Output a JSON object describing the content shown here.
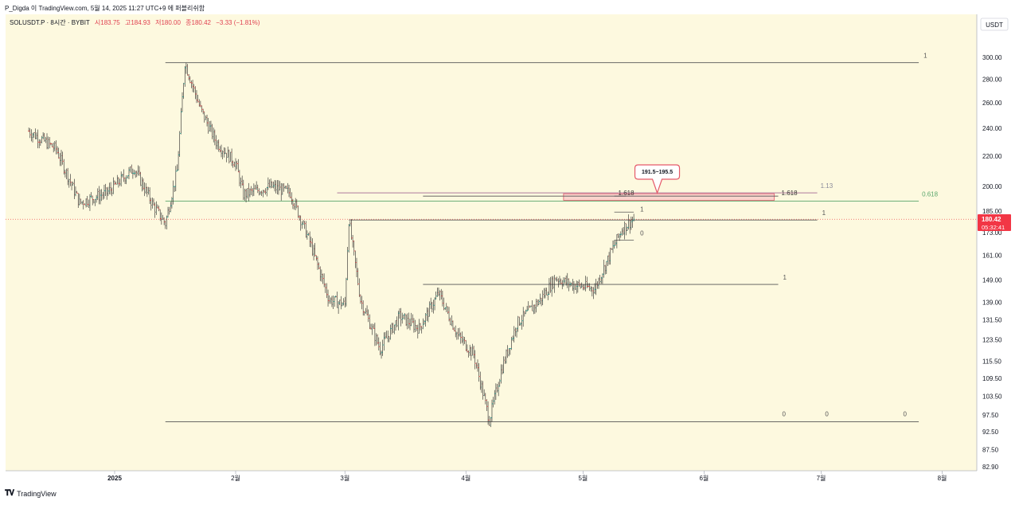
{
  "header": {
    "caption": "P_Digda 이 TradingView.com, 5월 14, 2025 11:27 UTC+9 에 퍼블리쉬함"
  },
  "legend": {
    "symbol": "SOLUSDT.P · 8시간 · BYBIT",
    "open": "시183.75",
    "high": "고184.93",
    "low": "저180.00",
    "close": "종180.42",
    "change": "−3.33 (−1.81%)"
  },
  "axis": {
    "currency": "USDT",
    "price_label": "180.42",
    "countdown": "05:32:41"
  },
  "footer": {
    "brand": "TradingView"
  },
  "colors": {
    "background": "#fdf9df",
    "up": "#26a69a",
    "down": "#ef5350",
    "candle": "#222222",
    "fib_green": "#5aa66c",
    "zone_fill": "#f5b7bd",
    "zone_border": "#e55a6a",
    "price_tag": "#f23645"
  },
  "chart_data": {
    "type": "candlestick",
    "symbol": "SOLUSDT.P",
    "interval": "8시간",
    "exchange": "BYBIT",
    "y_scale": "log",
    "y_ticks": [
      300.0,
      280.0,
      260.0,
      240.0,
      220.0,
      200.0,
      185.0,
      173.0,
      161.0,
      149.0,
      139.0,
      131.5,
      123.5,
      115.5,
      109.5,
      103.5,
      97.5,
      92.5,
      87.5,
      82.9
    ],
    "x_ticks": [
      "2025",
      "2월",
      "3월",
      "4월",
      "5월",
      "6월",
      "7월",
      "8월"
    ],
    "last_price": 180.42,
    "ohlc": {
      "open": 183.75,
      "high": 184.93,
      "low": 180.0,
      "close": 180.42,
      "change": -3.33,
      "change_pct": -1.81
    },
    "price_path": [
      {
        "date": "2024-12-10",
        "price": 238
      },
      {
        "date": "2024-12-17",
        "price": 225
      },
      {
        "date": "2024-12-23",
        "price": 190
      },
      {
        "date": "2024-12-30",
        "price": 196
      },
      {
        "date": "2025-01-06",
        "price": 212
      },
      {
        "date": "2025-01-11",
        "price": 188
      },
      {
        "date": "2025-01-14",
        "price": 178
      },
      {
        "date": "2025-01-17",
        "price": 210
      },
      {
        "date": "2025-01-19",
        "price": 295
      },
      {
        "date": "2025-01-23",
        "price": 255
      },
      {
        "date": "2025-01-27",
        "price": 230
      },
      {
        "date": "2025-02-01",
        "price": 215
      },
      {
        "date": "2025-02-03",
        "price": 195
      },
      {
        "date": "2025-02-10",
        "price": 200
      },
      {
        "date": "2025-02-15",
        "price": 196
      },
      {
        "date": "2025-02-20",
        "price": 168
      },
      {
        "date": "2025-02-25",
        "price": 140
      },
      {
        "date": "2025-03-01",
        "price": 138
      },
      {
        "date": "2025-03-02",
        "price": 180
      },
      {
        "date": "2025-03-05",
        "price": 140
      },
      {
        "date": "2025-03-10",
        "price": 120
      },
      {
        "date": "2025-03-15",
        "price": 133
      },
      {
        "date": "2025-03-20",
        "price": 128
      },
      {
        "date": "2025-03-25",
        "price": 143
      },
      {
        "date": "2025-03-30",
        "price": 125
      },
      {
        "date": "2025-04-03",
        "price": 118
      },
      {
        "date": "2025-04-07",
        "price": 96
      },
      {
        "date": "2025-04-10",
        "price": 112
      },
      {
        "date": "2025-04-14",
        "price": 130
      },
      {
        "date": "2025-04-20",
        "price": 140
      },
      {
        "date": "2025-04-24",
        "price": 150
      },
      {
        "date": "2025-04-28",
        "price": 147
      },
      {
        "date": "2025-05-04",
        "price": 145
      },
      {
        "date": "2025-05-08",
        "price": 162
      },
      {
        "date": "2025-05-11",
        "price": 175
      },
      {
        "date": "2025-05-14",
        "price": 180.42
      }
    ],
    "horizontal_lines": [
      {
        "price": 295,
        "start": "2025-01-14",
        "end": "2025-07-26",
        "label": "1"
      },
      {
        "price": 95.5,
        "start": "2025-01-14",
        "end": "2025-07-26",
        "labels": [
          "0",
          "0",
          "0"
        ]
      },
      {
        "price": 191,
        "start": "2025-01-14",
        "end": "2025-07-26",
        "label": "0.618",
        "color": "green"
      },
      {
        "price": 180,
        "start": "2025-03-02",
        "end": "2025-06-30",
        "label": "1"
      },
      {
        "price": 147,
        "start": "2025-03-21",
        "end": "2025-06-20",
        "label": "1"
      },
      {
        "price": 196,
        "start": "2025-02-27",
        "end": "2025-06-30",
        "label": "1.13"
      },
      {
        "price": 194,
        "start": "2025-03-21",
        "end": "2025-06-20",
        "label": "1.618"
      },
      {
        "price": 194,
        "start": "2025-05-09",
        "end": "2025-05-12",
        "label": "1.618"
      },
      {
        "price": 180.42,
        "label": "current price",
        "style": "dotted"
      }
    ],
    "range_box": {
      "start": "2025-05-09",
      "end": "2025-05-14",
      "top": 184.5,
      "bottom": 169,
      "labels": [
        "1",
        "0"
      ]
    },
    "zone": {
      "start": "2025-04-26",
      "end": "2025-06-19",
      "top": 195.5,
      "bottom": 191.5
    },
    "callout": {
      "text": "191.5~195.5",
      "date": "2025-05-20"
    }
  }
}
